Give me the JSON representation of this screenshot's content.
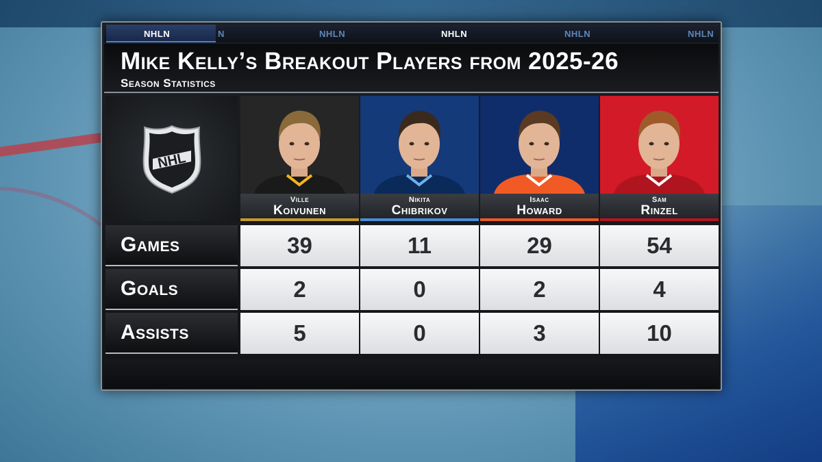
{
  "network": "NHLN",
  "ticker": [
    "NHLN",
    "N",
    "NHLN",
    "NHLN",
    "NHLN",
    "NHLN"
  ],
  "title": "Mike Kelly’s Breakout Players from 2025-26",
  "subtitle": "Season Statistics",
  "logo": {
    "text": "NHL",
    "icon": "nhl-shield-logo"
  },
  "rows": [
    {
      "label": "Games"
    },
    {
      "label": "Goals"
    },
    {
      "label": "Assists"
    }
  ],
  "players": [
    {
      "first": "Ville",
      "last": "Koivunen",
      "bg_color": "#262626",
      "jersey_color": "#1a1a1a",
      "accent": "#f5b41d",
      "stripe": "#c89b2a",
      "stats": {
        "games": "39",
        "goals": "2",
        "assists": "5"
      }
    },
    {
      "first": "Nikita",
      "last": "Chibrikov",
      "bg_color": "#143a7a",
      "jersey_color": "#0a2a5a",
      "accent": "#6fb1e6",
      "stripe": "#4a8ed8",
      "stats": {
        "games": "11",
        "goals": "0",
        "assists": "0"
      }
    },
    {
      "first": "Isaac",
      "last": "Howard",
      "bg_color": "#0f2d6a",
      "jersey_color": "#f15a24",
      "accent": "#ffffff",
      "stripe": "#f15a24",
      "stats": {
        "games": "29",
        "goals": "2",
        "assists": "3"
      }
    },
    {
      "first": "Sam",
      "last": "Rinzel",
      "bg_color": "#d31a28",
      "jersey_color": "#b0141f",
      "accent": "#ffffff",
      "stripe": "#b81420",
      "stats": {
        "games": "54",
        "goals": "4",
        "assists": "10"
      }
    }
  ]
}
